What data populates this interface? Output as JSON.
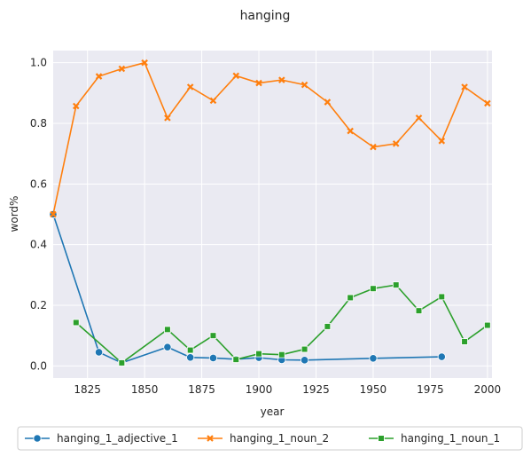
{
  "chart_data": {
    "type": "line",
    "title": "hanging",
    "xlabel": "year",
    "ylabel": "word%",
    "xlim": [
      1810,
      2002
    ],
    "ylim": [
      -0.04,
      1.04
    ],
    "xticks": [
      1825,
      1850,
      1875,
      1900,
      1925,
      1950,
      1975,
      2000
    ],
    "yticks": [
      0.0,
      0.2,
      0.4,
      0.6,
      0.8,
      1.0
    ],
    "grid": true,
    "legend_position": "bottom",
    "series": [
      {
        "name": "hanging_1_adjective_1",
        "color": "#1f77b4",
        "marker": "circle",
        "points": [
          {
            "x": 1810,
            "y": 0.5
          },
          {
            "x": 1830,
            "y": 0.045
          },
          {
            "x": 1840,
            "y": 0.01
          },
          {
            "x": 1860,
            "y": 0.062
          },
          {
            "x": 1870,
            "y": 0.028
          },
          {
            "x": 1880,
            "y": 0.026
          },
          {
            "x": 1890,
            "y": 0.022
          },
          {
            "x": 1900,
            "y": 0.027
          },
          {
            "x": 1910,
            "y": 0.02
          },
          {
            "x": 1920,
            "y": 0.019
          },
          {
            "x": 1950,
            "y": 0.025
          },
          {
            "x": 1980,
            "y": 0.03
          }
        ]
      },
      {
        "name": "hanging_1_noun_2",
        "color": "#ff7f0e",
        "marker": "x",
        "points": [
          {
            "x": 1810,
            "y": 0.5
          },
          {
            "x": 1820,
            "y": 0.857
          },
          {
            "x": 1830,
            "y": 0.955
          },
          {
            "x": 1840,
            "y": 0.98
          },
          {
            "x": 1850,
            "y": 1.0
          },
          {
            "x": 1860,
            "y": 0.818
          },
          {
            "x": 1870,
            "y": 0.92
          },
          {
            "x": 1880,
            "y": 0.875
          },
          {
            "x": 1890,
            "y": 0.957
          },
          {
            "x": 1900,
            "y": 0.933
          },
          {
            "x": 1910,
            "y": 0.943
          },
          {
            "x": 1920,
            "y": 0.927
          },
          {
            "x": 1930,
            "y": 0.87
          },
          {
            "x": 1940,
            "y": 0.775
          },
          {
            "x": 1950,
            "y": 0.722
          },
          {
            "x": 1960,
            "y": 0.733
          },
          {
            "x": 1970,
            "y": 0.818
          },
          {
            "x": 1980,
            "y": 0.742
          },
          {
            "x": 1990,
            "y": 0.92
          },
          {
            "x": 2000,
            "y": 0.866
          }
        ]
      },
      {
        "name": "hanging_1_noun_1",
        "color": "#2ca02c",
        "marker": "square",
        "points": [
          {
            "x": 1820,
            "y": 0.143
          },
          {
            "x": 1840,
            "y": 0.01
          },
          {
            "x": 1860,
            "y": 0.12
          },
          {
            "x": 1870,
            "y": 0.052
          },
          {
            "x": 1880,
            "y": 0.1
          },
          {
            "x": 1890,
            "y": 0.021
          },
          {
            "x": 1900,
            "y": 0.04
          },
          {
            "x": 1910,
            "y": 0.037
          },
          {
            "x": 1920,
            "y": 0.055
          },
          {
            "x": 1930,
            "y": 0.13
          },
          {
            "x": 1940,
            "y": 0.225
          },
          {
            "x": 1950,
            "y": 0.255
          },
          {
            "x": 1960,
            "y": 0.267
          },
          {
            "x": 1970,
            "y": 0.182
          },
          {
            "x": 1980,
            "y": 0.228
          },
          {
            "x": 1990,
            "y": 0.08
          },
          {
            "x": 2000,
            "y": 0.134
          }
        ]
      }
    ]
  }
}
